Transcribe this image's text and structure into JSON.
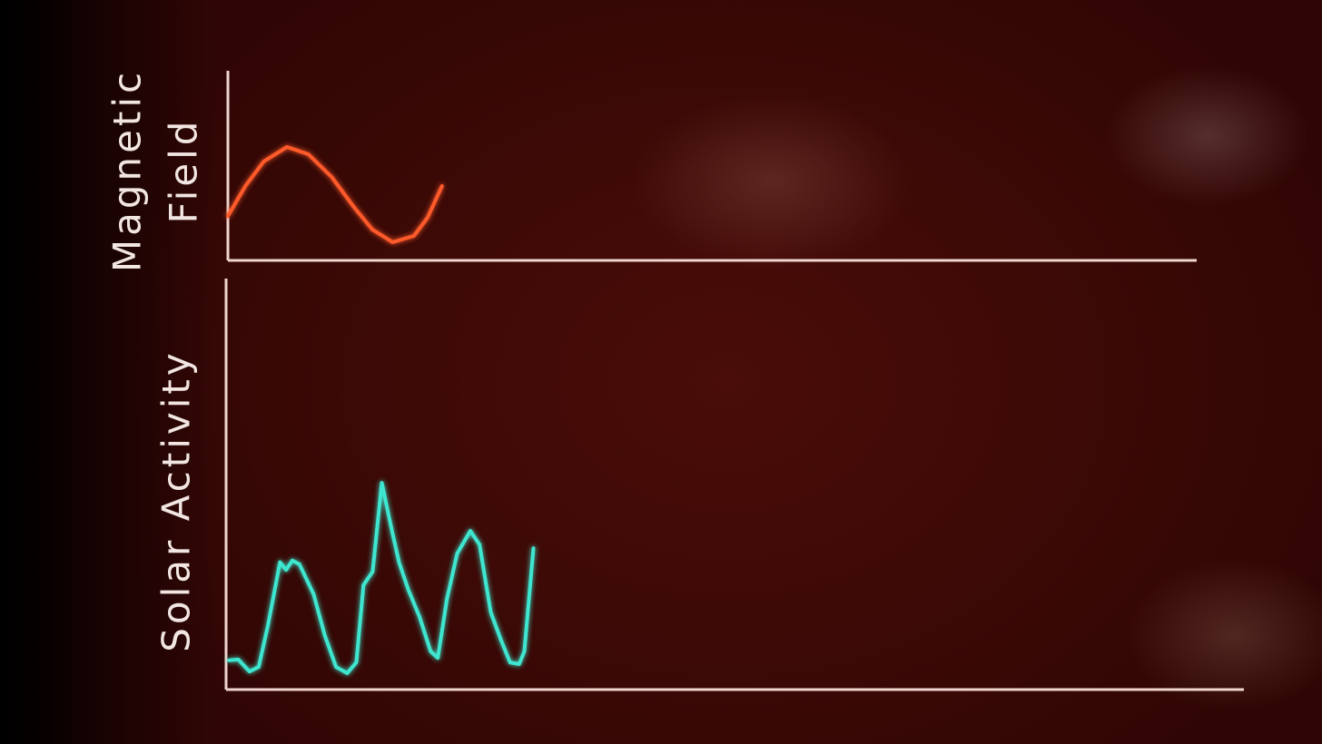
{
  "chart_data": [
    {
      "type": "line",
      "y_label_lines": [
        "Magnetic",
        "Field"
      ],
      "color": "#ff5a2a",
      "xlim": [
        0,
        100
      ],
      "ylim": [
        0,
        100
      ],
      "x": [
        0,
        1.8,
        3.7,
        6.1,
        8.3,
        10.7,
        13.0,
        14.9,
        17.0,
        19.2,
        20.6,
        22.1
      ],
      "values": [
        23.4,
        39.2,
        52.2,
        59.8,
        56.0,
        44.0,
        28.2,
        16.3,
        9.6,
        12.9,
        22.5,
        39.2
      ]
    },
    {
      "type": "line",
      "y_label_lines": [
        "Solar Activity"
      ],
      "color": "#3fe6cf",
      "xlim": [
        0,
        100
      ],
      "ylim": [
        0,
        100
      ],
      "x": [
        0.3,
        1.2,
        2.3,
        3.2,
        4.1,
        5.3,
        5.9,
        6.5,
        7.2,
        8.6,
        9.7,
        10.8,
        11.9,
        12.8,
        13.5,
        14.4,
        15.3,
        16.3,
        17.0,
        17.9,
        19.0,
        20.1,
        20.8,
        21.7,
        22.7,
        24.0,
        24.9,
        26.0,
        27.0,
        27.9,
        28.8,
        29.3,
        30.2
      ],
      "values": [
        7.1,
        7.3,
        4.4,
        5.5,
        15.5,
        31.0,
        29.1,
        31.4,
        30.5,
        23.2,
        13.2,
        5.5,
        4.0,
        6.6,
        25.4,
        28.7,
        50.3,
        38.6,
        30.9,
        24.3,
        17.7,
        9.3,
        7.7,
        22.1,
        33.1,
        38.6,
        35.3,
        18.8,
        12.1,
        6.6,
        6.2,
        9.3,
        34.4
      ]
    }
  ]
}
